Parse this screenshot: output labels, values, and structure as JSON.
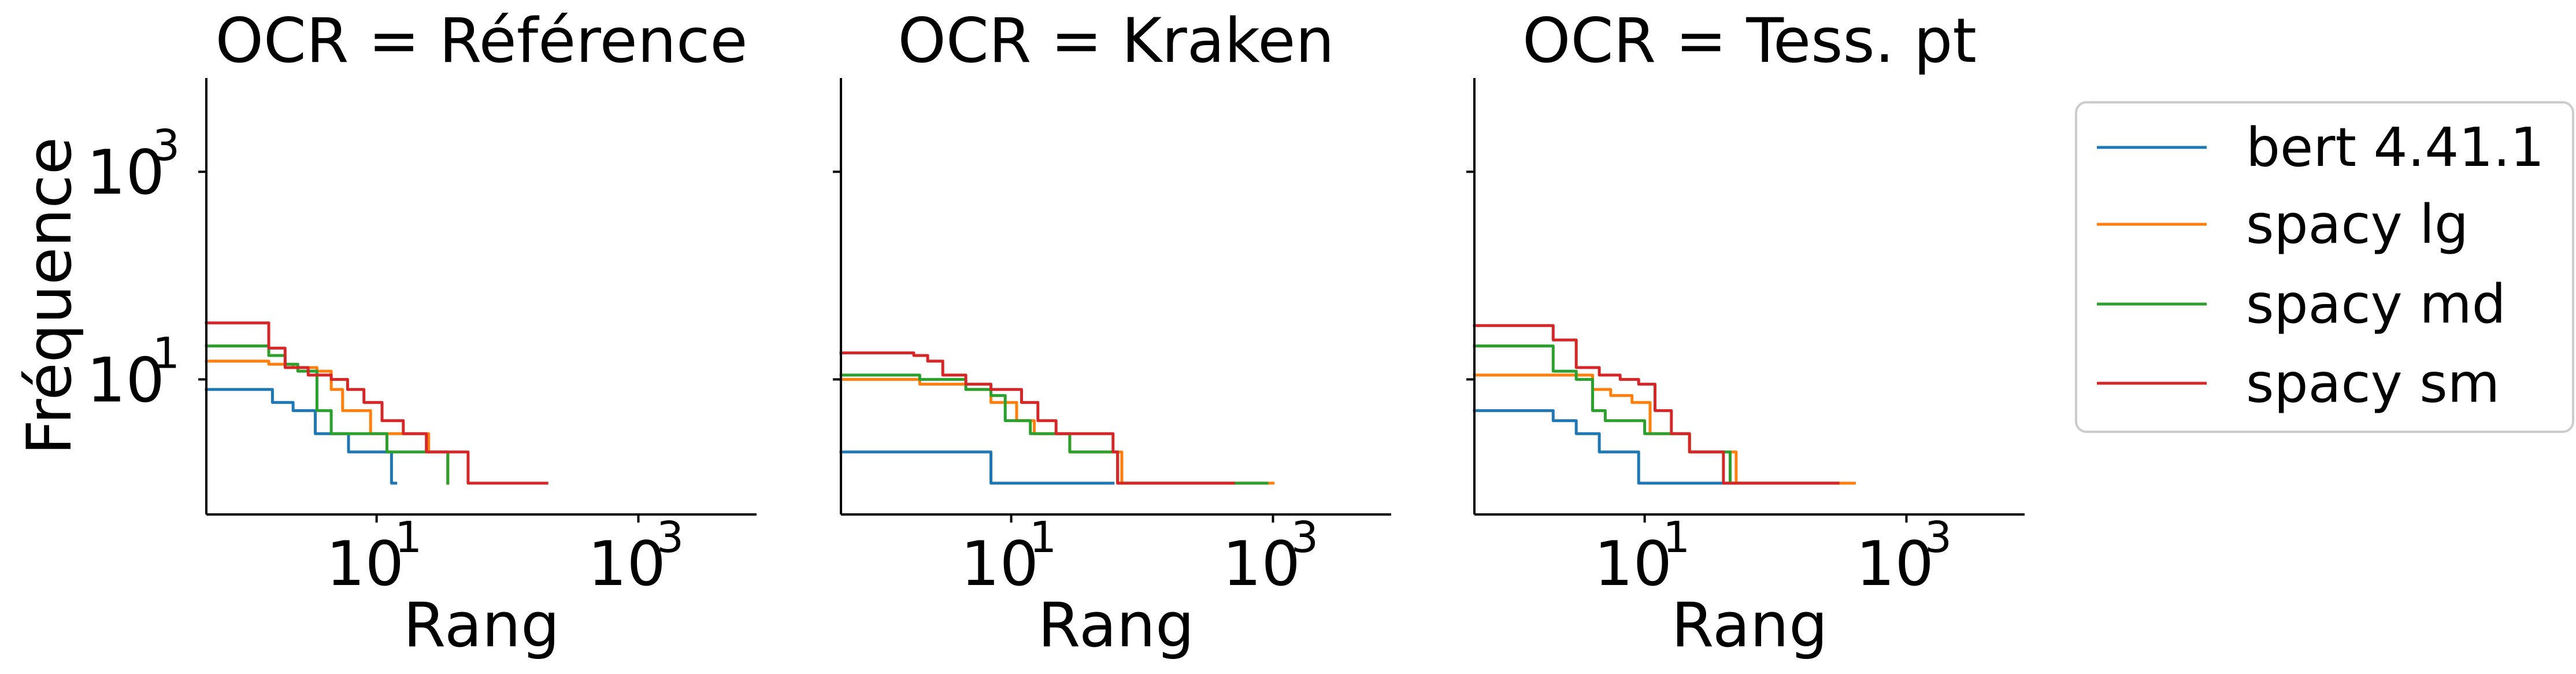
{
  "chart_data": [
    {
      "type": "line",
      "title": "OCR = Référence",
      "xlabel": "Rang",
      "ylabel": "Fréquence",
      "xscale": "log",
      "yscale": "log",
      "xlim": [
        0.5,
        8000
      ],
      "ylim": [
        0.5,
        8000
      ],
      "xticks": [
        {
          "base": "10",
          "exp": "1"
        },
        {
          "base": "10",
          "exp": "3"
        }
      ],
      "yticks": [
        {
          "base": "10",
          "exp": "1"
        },
        {
          "base": "10",
          "exp": "3"
        }
      ],
      "series": [
        {
          "name": "bert 4.41.1",
          "color": "#1f77b4",
          "x": [
            0.5,
            1,
            1.6,
            2.3,
            3.4,
            4.5,
            6.1,
            13,
            14
          ],
          "y": [
            8,
            8,
            6,
            5,
            3,
            3,
            2,
            1,
            1
          ]
        },
        {
          "name": "spacy lg",
          "color": "#ff7f0e",
          "x": [
            0.5,
            1,
            1.5,
            2.3,
            3.5,
            4.5,
            5.5,
            9,
            15,
            25,
            35
          ],
          "y": [
            15,
            15,
            14,
            13,
            12,
            8,
            5,
            3,
            3,
            2,
            1
          ]
        },
        {
          "name": "spacy md",
          "color": "#2ca02c",
          "x": [
            0.5,
            1,
            1.5,
            2,
            2.5,
            3.5,
            4.5,
            7,
            12,
            19,
            35
          ],
          "y": [
            21,
            21,
            17,
            14,
            12,
            5,
            3,
            3,
            2,
            2,
            1
          ]
        },
        {
          "name": "spacy sm",
          "color": "#d62728",
          "x": [
            0.5,
            1,
            1.5,
            2,
            3,
            4.5,
            6,
            8,
            11,
            16,
            24,
            33,
            50,
            200
          ],
          "y": [
            35,
            35,
            20,
            13,
            11,
            10,
            8,
            6,
            4,
            3,
            2,
            2,
            1,
            1
          ]
        }
      ]
    },
    {
      "type": "line",
      "title": "OCR = Kraken",
      "xlabel": "Rang",
      "ylabel": "",
      "xscale": "log",
      "yscale": "log",
      "xlim": [
        0.5,
        8000
      ],
      "ylim": [
        0.5,
        8000
      ],
      "xticks": [
        {
          "base": "10",
          "exp": "1"
        },
        {
          "base": "10",
          "exp": "3"
        }
      ],
      "yticks": [],
      "series": [
        {
          "name": "bert 4.41.1",
          "color": "#1f77b4",
          "x": [
            0.5,
            1,
            2,
            6.5,
            7,
            60
          ],
          "y": [
            2,
            2,
            2,
            2,
            1,
            1
          ]
        },
        {
          "name": "spacy lg",
          "color": "#ff7f0e",
          "x": [
            0.5,
            1,
            2,
            3,
            4.5,
            7,
            11,
            15,
            21,
            28,
            65,
            70,
            1000
          ],
          "y": [
            10,
            10,
            9,
            9,
            8,
            6,
            4,
            3,
            3,
            2,
            2,
            1,
            1
          ]
        },
        {
          "name": "spacy md",
          "color": "#2ca02c",
          "x": [
            0.5,
            1,
            2,
            3,
            4.5,
            7,
            9,
            14,
            20,
            28,
            60,
            65,
            900
          ],
          "y": [
            11,
            11,
            10,
            10,
            8,
            7,
            4,
            3,
            3,
            2,
            2,
            1,
            1
          ]
        },
        {
          "name": "spacy sm",
          "color": "#d62728",
          "x": [
            0.5,
            1,
            1.8,
            2.3,
            3,
            4.5,
            7,
            9,
            12,
            16,
            22,
            30,
            60,
            65,
            500
          ],
          "y": [
            18,
            18,
            17,
            15,
            11,
            9,
            8,
            8,
            6,
            4,
            3,
            3,
            2,
            1,
            1
          ]
        }
      ]
    },
    {
      "type": "line",
      "title": "OCR = Tess. pt",
      "xlabel": "Rang",
      "ylabel": "",
      "xscale": "log",
      "yscale": "log",
      "xlim": [
        0.5,
        8000
      ],
      "ylim": [
        0.5,
        8000
      ],
      "xticks": [
        {
          "base": "10",
          "exp": "1"
        },
        {
          "base": "10",
          "exp": "3"
        }
      ],
      "yticks": [],
      "series": [
        {
          "name": "bert 4.41.1",
          "color": "#1f77b4",
          "x": [
            0.5,
            1,
            2,
            3,
            4.5,
            7,
            9,
            50
          ],
          "y": [
            5,
            5,
            4,
            3,
            2,
            2,
            1,
            1
          ]
        },
        {
          "name": "spacy lg",
          "color": "#ff7f0e",
          "x": [
            0.5,
            1,
            2,
            3,
            4,
            5.5,
            8,
            11,
            16,
            22,
            45,
            50,
            400
          ],
          "y": [
            11,
            11,
            11,
            11,
            8,
            7,
            6,
            3,
            3,
            2,
            2,
            1,
            1
          ]
        },
        {
          "name": "spacy md",
          "color": "#2ca02c",
          "x": [
            0.5,
            1,
            2,
            3,
            4,
            5,
            7,
            10,
            15,
            22,
            40,
            45,
            300
          ],
          "y": [
            21,
            21,
            12,
            10,
            5,
            4,
            4,
            3,
            3,
            2,
            2,
            1,
            1
          ]
        },
        {
          "name": "spacy sm",
          "color": "#d62728",
          "x": [
            0.5,
            1,
            2,
            3,
            4.5,
            6.5,
            9,
            12,
            16,
            22,
            35,
            40,
            300
          ],
          "y": [
            33,
            33,
            24,
            13,
            11,
            10,
            9,
            5,
            3,
            2,
            2,
            1,
            1
          ]
        }
      ]
    }
  ],
  "legend": {
    "position": "right",
    "entries": [
      "bert 4.41.1",
      "spacy lg",
      "spacy md",
      "spacy sm"
    ],
    "colors": [
      "#1f77b4",
      "#ff7f0e",
      "#2ca02c",
      "#d62728"
    ]
  }
}
